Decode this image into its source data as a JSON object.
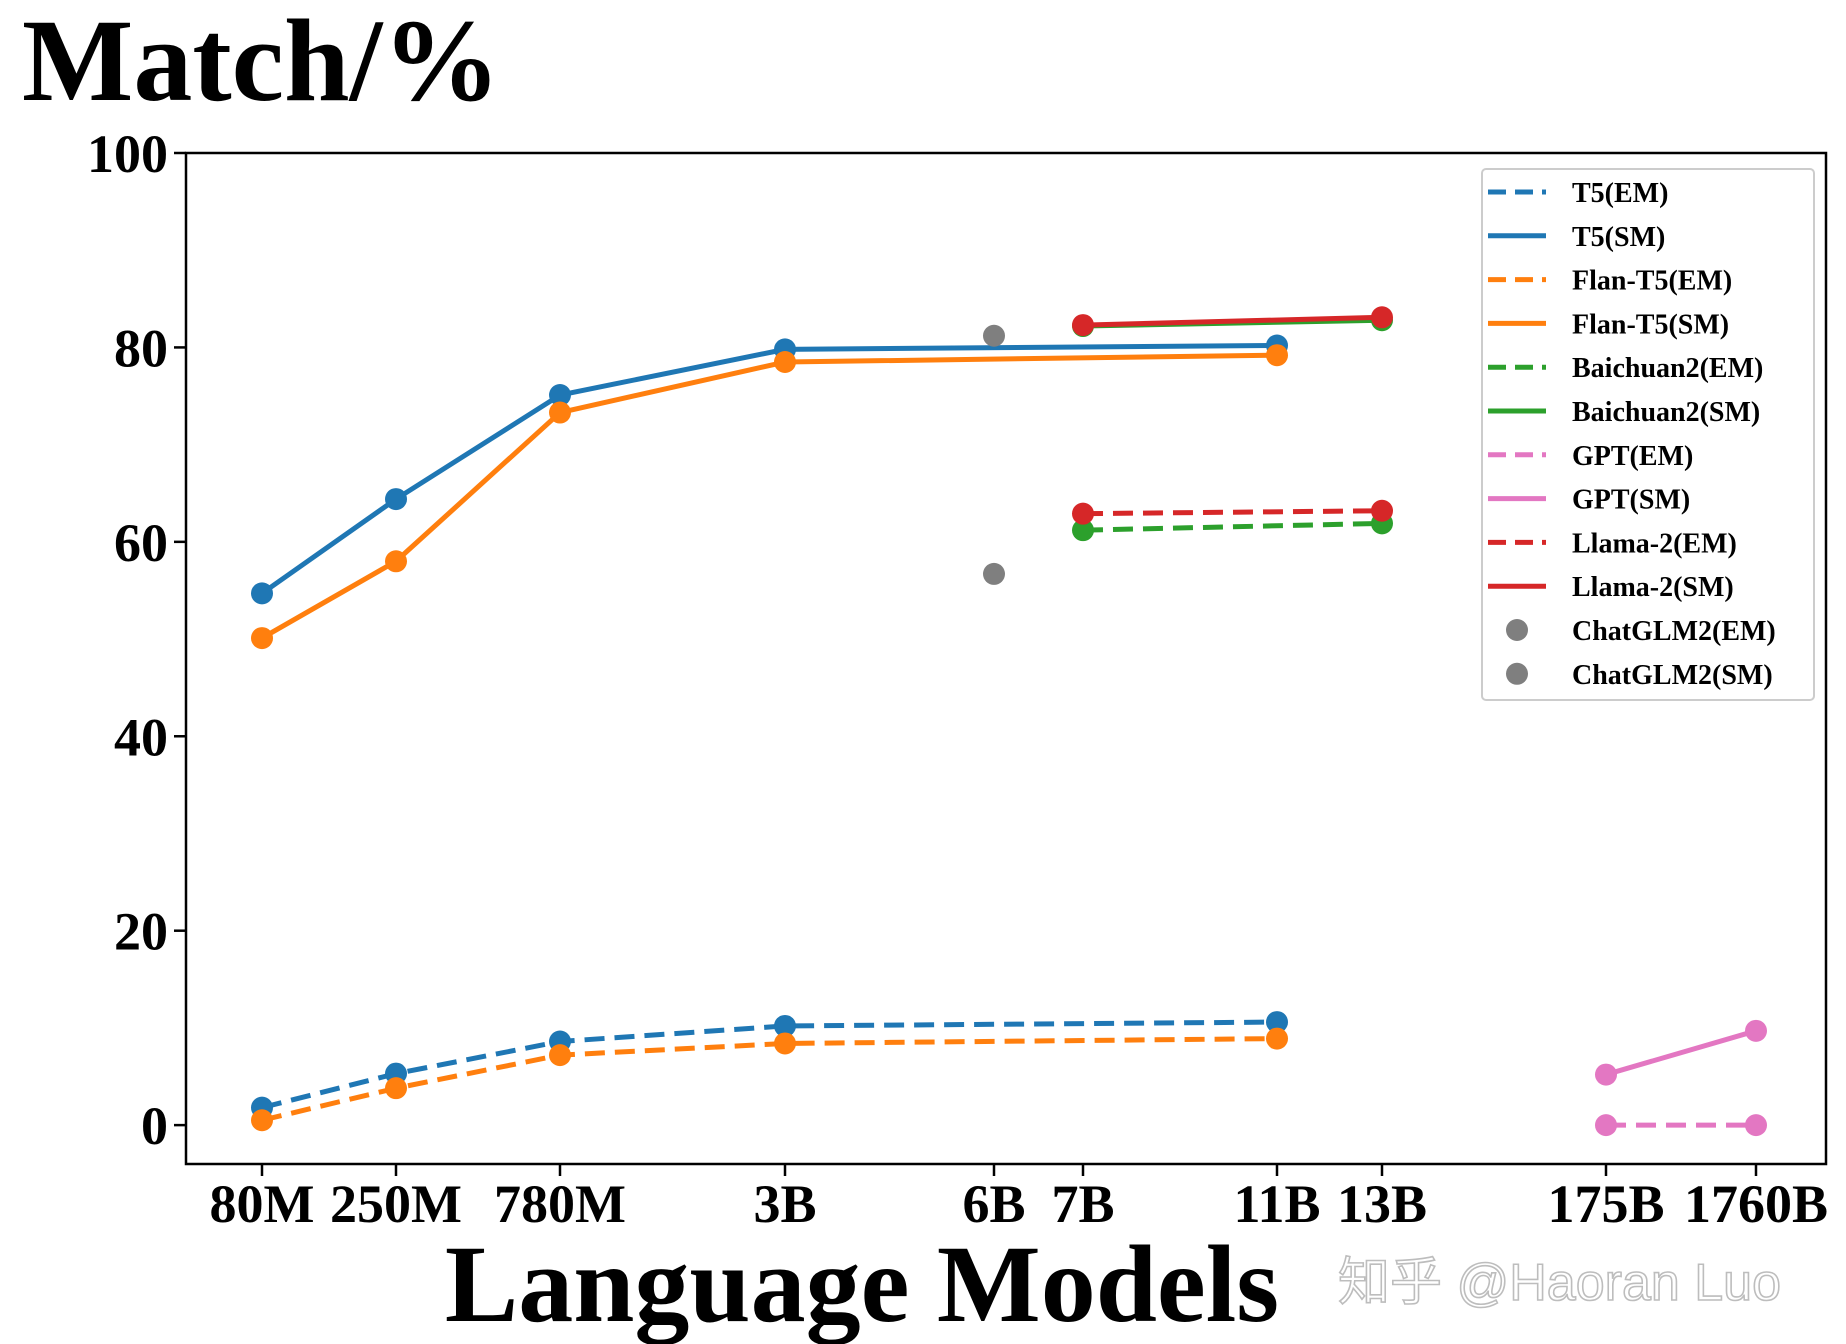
{
  "chart_data": {
    "type": "line",
    "ylabel": "Match/%",
    "xlabel": "Language Models",
    "ylim": [
      -4,
      100
    ],
    "yticks": [
      0,
      20,
      40,
      60,
      80,
      100
    ],
    "categories": [
      "80M",
      "250M",
      "780M",
      "3B",
      "6B",
      "7B",
      "11B",
      "13B",
      "175B",
      "1760B"
    ],
    "watermark": "知乎 @Haoran Luo",
    "series": [
      {
        "name": "T5(EM)",
        "color": "#1f77b4",
        "style": "dashed",
        "x": [
          "80M",
          "250M",
          "780M",
          "3B",
          "11B"
        ],
        "values": [
          1.8,
          5.3,
          8.6,
          10.2,
          10.6
        ]
      },
      {
        "name": "T5(SM)",
        "color": "#1f77b4",
        "style": "solid",
        "x": [
          "80M",
          "250M",
          "780M",
          "3B",
          "11B"
        ],
        "values": [
          54.7,
          64.4,
          75.1,
          79.8,
          80.2
        ]
      },
      {
        "name": "Flan-T5(EM)",
        "color": "#ff7f0e",
        "style": "dashed",
        "x": [
          "80M",
          "250M",
          "780M",
          "3B",
          "11B"
        ],
        "values": [
          0.5,
          3.8,
          7.2,
          8.4,
          8.9
        ]
      },
      {
        "name": "Flan-T5(SM)",
        "color": "#ff7f0e",
        "style": "solid",
        "x": [
          "80M",
          "250M",
          "780M",
          "3B",
          "11B"
        ],
        "values": [
          50.1,
          58.0,
          73.3,
          78.5,
          79.2
        ]
      },
      {
        "name": "Baichuan2(EM)",
        "color": "#2ca02c",
        "style": "dashed",
        "x": [
          "7B",
          "13B"
        ],
        "values": [
          61.2,
          61.9
        ]
      },
      {
        "name": "Baichuan2(SM)",
        "color": "#2ca02c",
        "style": "solid",
        "x": [
          "7B",
          "13B"
        ],
        "values": [
          82.2,
          82.8
        ]
      },
      {
        "name": "GPT(EM)",
        "color": "#e377c2",
        "style": "dashed",
        "x": [
          "175B",
          "1760B"
        ],
        "values": [
          0.0,
          0.0
        ]
      },
      {
        "name": "GPT(SM)",
        "color": "#e377c2",
        "style": "solid",
        "x": [
          "175B",
          "1760B"
        ],
        "values": [
          5.2,
          9.7
        ]
      },
      {
        "name": "Llama-2(EM)",
        "color": "#d62728",
        "style": "dashed",
        "x": [
          "7B",
          "13B"
        ],
        "values": [
          62.9,
          63.2
        ]
      },
      {
        "name": "Llama-2(SM)",
        "color": "#d62728",
        "style": "solid",
        "x": [
          "7B",
          "13B"
        ],
        "values": [
          82.3,
          83.1
        ]
      },
      {
        "name": "ChatGLM2(EM)",
        "color": "#7f7f7f",
        "style": "marker",
        "x": [
          "6B"
        ],
        "values": [
          56.7
        ]
      },
      {
        "name": "ChatGLM2(SM)",
        "color": "#7f7f7f",
        "style": "marker",
        "x": [
          "6B"
        ],
        "values": [
          81.2
        ]
      }
    ]
  }
}
